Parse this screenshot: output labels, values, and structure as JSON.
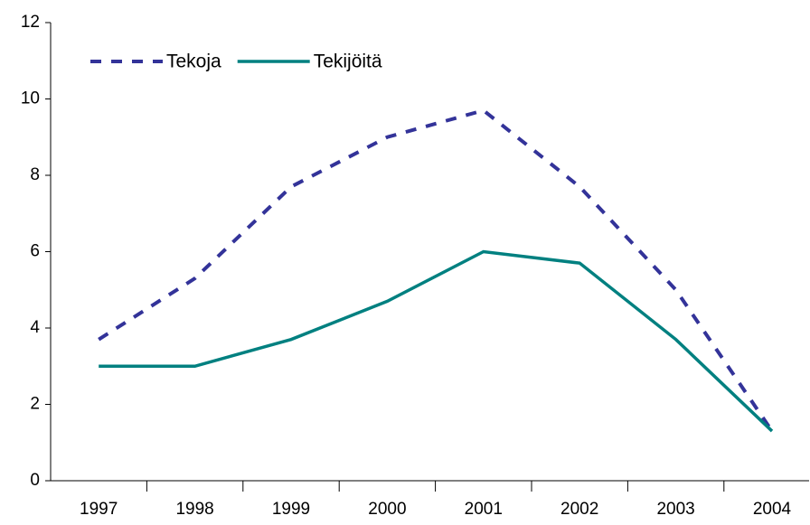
{
  "chart_data": {
    "type": "line",
    "categories": [
      "1997",
      "1998",
      "1999",
      "2000",
      "2001",
      "2002",
      "2003",
      "2004"
    ],
    "series": [
      {
        "name": "Tekoja",
        "color": "#333399",
        "dashed": true,
        "values": [
          3.7,
          5.3,
          7.7,
          9.0,
          9.7,
          7.7,
          5.0,
          1.3
        ]
      },
      {
        "name": "Tekijöitä",
        "color": "#008080",
        "dashed": false,
        "values": [
          3.0,
          3.0,
          3.7,
          4.7,
          6.0,
          5.7,
          3.7,
          1.3
        ]
      }
    ],
    "ylim": [
      0,
      12
    ],
    "yticks": [
      0,
      2,
      4,
      6,
      8,
      10,
      12
    ],
    "grid": false,
    "legend": "top-left"
  }
}
